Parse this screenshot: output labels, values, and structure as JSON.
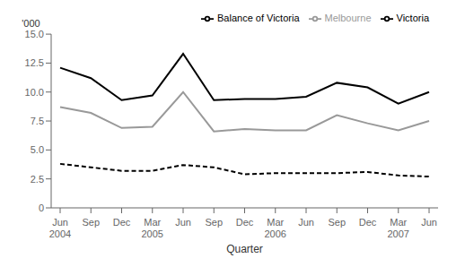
{
  "chart_data": {
    "type": "line",
    "xlabel": "Quarter",
    "ylabel": "'000",
    "categories": [
      "Jun\n2004",
      "Sep",
      "Dec",
      "Mar\n2005",
      "Jun",
      "Sep",
      "Dec",
      "Mar\n2006",
      "Jun",
      "Sep",
      "Dec",
      "Mar\n2007",
      "Jun"
    ],
    "series": [
      {
        "name": "Victoria",
        "color": "#000000",
        "line_style": "solid",
        "values": [
          12.1,
          11.2,
          9.3,
          9.7,
          13.3,
          9.3,
          9.4,
          9.4,
          9.6,
          10.8,
          10.4,
          9.0,
          10.0
        ]
      },
      {
        "name": "Melbourne",
        "color": "#999999",
        "line_style": "solid",
        "values": [
          8.7,
          8.2,
          6.9,
          7.0,
          10.0,
          6.6,
          6.8,
          6.7,
          6.7,
          8.0,
          7.3,
          6.7,
          7.5
        ]
      },
      {
        "name": "Balance of Victoria",
        "color": "#000000",
        "line_style": "dashed",
        "values": [
          3.8,
          3.5,
          3.2,
          3.2,
          3.7,
          3.5,
          2.9,
          3.0,
          3.0,
          3.0,
          3.1,
          2.8,
          2.7
        ]
      }
    ],
    "ylim": [
      0,
      15
    ],
    "yticks": [
      0,
      2.5,
      {
        "value": 5,
        "label": "5.0"
      },
      7.5,
      {
        "value": 10,
        "label": "10.0"
      },
      12.5,
      {
        "value": 15,
        "label": "15.0"
      }
    ],
    "legend": "upper right",
    "grid": false
  }
}
